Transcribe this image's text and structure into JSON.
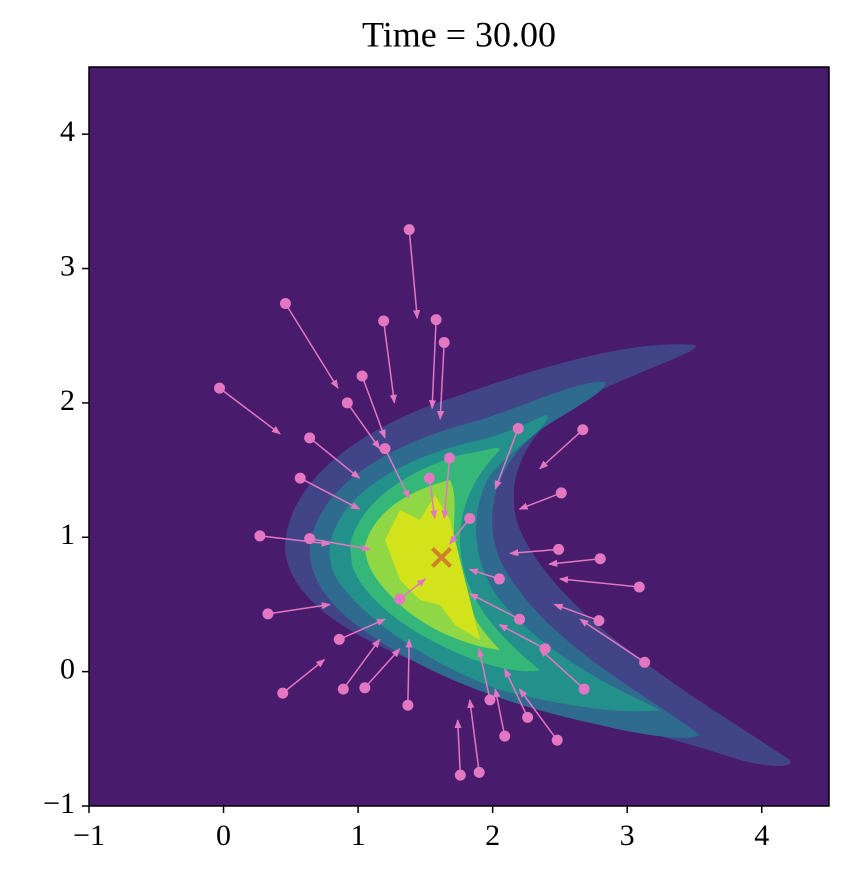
{
  "chart_data": {
    "type": "particles",
    "title": "Time = 30.00",
    "xlim": [
      -1,
      4.5
    ],
    "ylim": [
      -1,
      4.5
    ],
    "xticks": [
      {
        "value": -1,
        "label": "−1"
      },
      0,
      1,
      2,
      3,
      4
    ],
    "yticks": [
      {
        "value": -1,
        "label": "−1"
      },
      0,
      1,
      2,
      3,
      4
    ],
    "color": "#e377c2",
    "x": [
      1.38,
      0.46,
      -0.03,
      1.58,
      1.19,
      0.27,
      0.33,
      0.44,
      1.37,
      1.76,
      1.9,
      2.48,
      3.13,
      3.09,
      2.79,
      2.67,
      2.51,
      1.98,
      2.68,
      0.89,
      0.64,
      0.92,
      1.64,
      1.03,
      2.19,
      2.09,
      1.05,
      0.57,
      2.49,
      2.26,
      1.2,
      1.68,
      2.2,
      0.86,
      0.64,
      1.83,
      1.31,
      2.05,
      1.53,
      2.39,
      2.8
    ],
    "y": [
      3.29,
      2.74,
      2.11,
      2.62,
      2.61,
      1.01,
      0.43,
      -0.16,
      -0.25,
      -0.77,
      -0.75,
      -0.51,
      0.07,
      0.63,
      0.38,
      1.8,
      1.33,
      -0.21,
      -0.13,
      -0.13,
      1.74,
      2.0,
      2.45,
      2.2,
      1.81,
      -0.48,
      -0.12,
      1.44,
      0.91,
      -0.34,
      1.66,
      1.59,
      0.39,
      0.24,
      0.99,
      1.14,
      0.54,
      0.69,
      1.44,
      0.17,
      0.84
    ],
    "to_x": [
      1.44,
      0.85,
      0.42,
      1.55,
      1.27,
      0.79,
      0.79,
      0.75,
      1.38,
      1.74,
      1.83,
      2.2,
      2.65,
      2.5,
      2.46,
      2.35,
      2.2,
      1.9,
      2.35,
      1.16,
      1.01,
      1.16,
      1.61,
      1.2,
      2.02,
      2.02,
      1.31,
      1.01,
      2.13,
      2.09,
      1.38,
      1.64,
      1.83,
      1.2,
      1.09,
      1.68,
      1.5,
      1.83,
      1.57,
      2.05,
      2.42
    ],
    "to_y": [
      2.63,
      2.11,
      1.77,
      1.96,
      2.0,
      0.95,
      0.5,
      0.09,
      0.24,
      -0.36,
      -0.21,
      -0.13,
      0.39,
      0.69,
      0.5,
      1.51,
      1.21,
      0.17,
      0.17,
      0.24,
      1.44,
      1.66,
      1.88,
      1.74,
      1.36,
      -0.13,
      0.17,
      1.21,
      0.88,
      0.02,
      1.29,
      1.14,
      0.58,
      0.39,
      0.91,
      0.95,
      0.69,
      0.76,
      1.14,
      0.35,
      0.8
    ],
    "center": {
      "x": 1.62,
      "y": 0.85,
      "color": "#d2702e"
    }
  }
}
